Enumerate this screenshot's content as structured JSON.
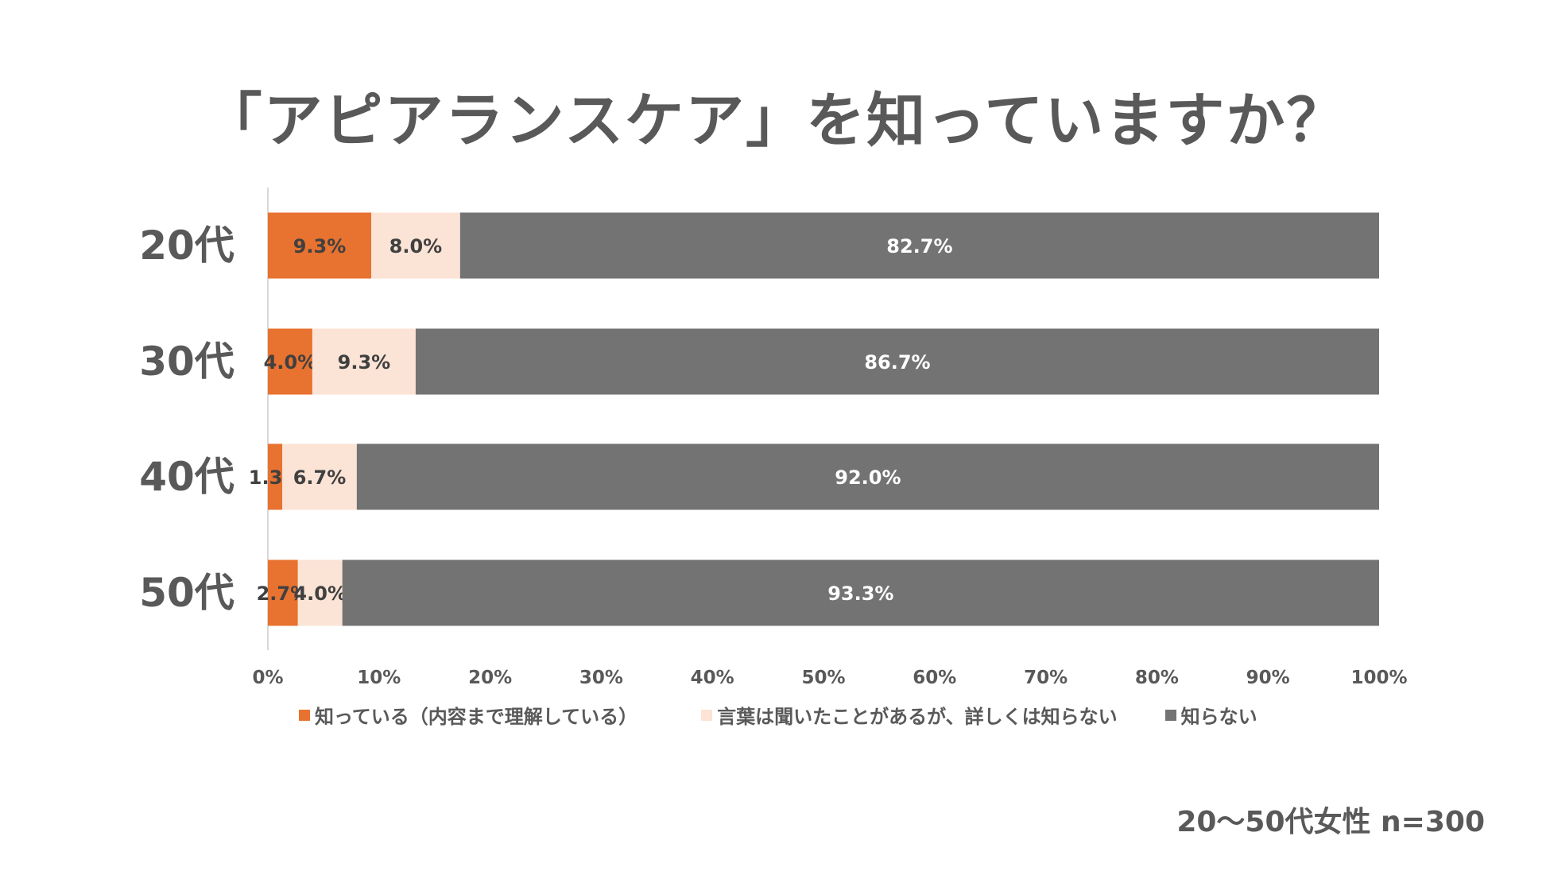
{
  "title": "「アピアランスケア」を知っていますか？",
  "footnote": "20〜50代女性 n=300",
  "chart_data": {
    "type": "bar",
    "orientation": "horizontal",
    "stacked": true,
    "title": "「アピアランスケア」を知っていますか？",
    "categories": [
      "20代",
      "30代",
      "40代",
      "50代"
    ],
    "series": [
      {
        "name": "知っている（内容まで理解している）",
        "color": "#E8722F",
        "values": [
          9.3,
          4.0,
          1.3,
          2.7
        ],
        "labels": [
          "9.3%",
          "4.0%",
          "1.3%",
          "2.7%"
        ]
      },
      {
        "name": "言葉は聞いたことがあるが、詳しくは知らない",
        "color": "#FBE3D6",
        "values": [
          8.0,
          9.3,
          6.7,
          4.0
        ],
        "labels": [
          "8.0%",
          "9.3%",
          "6.7%",
          "4.0%"
        ]
      },
      {
        "name": "知らない",
        "color": "#737373",
        "values": [
          82.7,
          86.7,
          92.0,
          93.3
        ],
        "labels": [
          "82.7%",
          "86.7%",
          "92.0%",
          "93.3%"
        ]
      }
    ],
    "xlim": [
      0,
      100
    ],
    "x_ticks": [
      "0%",
      "10%",
      "20%",
      "30%",
      "40%",
      "50%",
      "60%",
      "70%",
      "80%",
      "90%",
      "100%"
    ],
    "legend_position": "bottom",
    "grid": false
  }
}
